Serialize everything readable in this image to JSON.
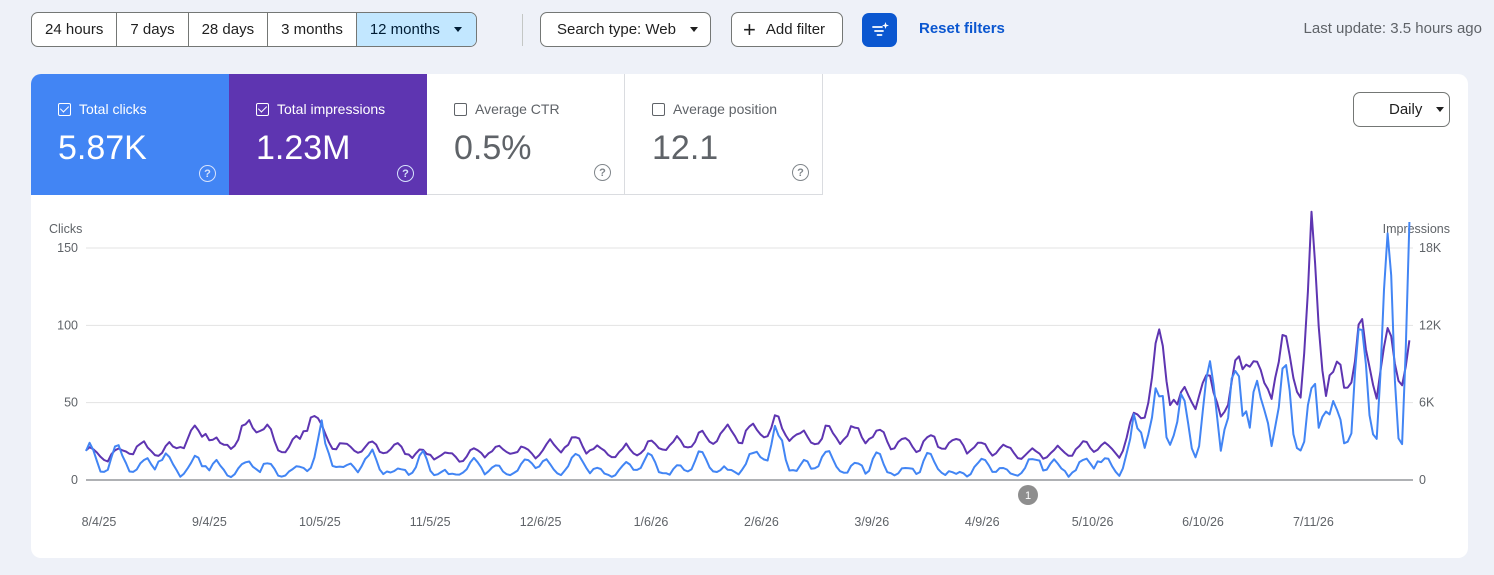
{
  "toolbar": {
    "ranges": [
      "24 hours",
      "7 days",
      "28 days",
      "3 months",
      "12 months"
    ],
    "active_range": "12 months",
    "search_type": "Search type: Web",
    "add_filter": "Add filter",
    "reset_filters": "Reset filters",
    "last_update": "Last update: 3.5 hours ago"
  },
  "metrics": [
    {
      "label": "Total clicks",
      "value": "5.87K",
      "checked": true,
      "color": "#4285f4"
    },
    {
      "label": "Total impressions",
      "value": "1.23M",
      "checked": true,
      "color": "#5e35b1"
    },
    {
      "label": "Average CTR",
      "value": "0.5%",
      "checked": false
    },
    {
      "label": "Average position",
      "value": "12.1",
      "checked": false
    }
  ],
  "granularity": "Daily",
  "annotation_badge": "1",
  "colors": {
    "clicks": "#4285f4",
    "impressions": "#5e35b1",
    "accent": "#0b57d0",
    "active_range_bg": "#c2e7ff"
  },
  "chart_data": {
    "type": "line",
    "left_axis": {
      "label": "Clicks",
      "ticks": [
        "150",
        "100",
        "50",
        "0"
      ],
      "range": [
        0,
        150
      ]
    },
    "right_axis": {
      "label": "Impressions",
      "ticks": [
        "18K",
        "12K",
        "6K",
        "0"
      ],
      "range": [
        0,
        18000
      ]
    },
    "x_ticks": [
      "8/4/25",
      "9/4/25",
      "10/5/25",
      "11/5/25",
      "12/6/25",
      "1/6/26",
      "2/6/26",
      "3/9/26",
      "4/9/26",
      "5/10/26",
      "6/10/26",
      "7/11/26"
    ],
    "x_range": [
      "2025-08-04",
      "2026-08-05"
    ],
    "grid": true,
    "series": [
      {
        "axis": "left",
        "color": "#4285f4",
        "keypoints": [
          [
            "2025-08-04",
            22
          ],
          [
            "2025-08-08",
            8
          ],
          [
            "2025-08-12",
            18
          ],
          [
            "2025-08-18",
            6
          ],
          [
            "2025-08-24",
            16
          ],
          [
            "2025-08-30",
            5
          ],
          [
            "2025-09-06",
            14
          ],
          [
            "2025-09-12",
            4
          ],
          [
            "2025-09-20",
            12
          ],
          [
            "2025-09-27",
            3
          ],
          [
            "2025-10-05",
            10
          ],
          [
            "2025-10-08",
            25
          ],
          [
            "2025-10-14",
            6
          ],
          [
            "2025-10-20",
            15
          ],
          [
            "2025-10-28",
            4
          ],
          [
            "2025-11-05",
            12
          ],
          [
            "2025-11-12",
            3
          ],
          [
            "2025-11-20",
            11
          ],
          [
            "2025-11-28",
            4
          ],
          [
            "2025-12-06",
            13
          ],
          [
            "2025-12-12",
            5
          ],
          [
            "2025-12-18",
            14
          ],
          [
            "2025-12-25",
            3
          ],
          [
            "2026-01-06",
            12
          ],
          [
            "2026-01-12",
            4
          ],
          [
            "2026-01-20",
            15
          ],
          [
            "2026-01-28",
            5
          ],
          [
            "2026-02-06",
            16
          ],
          [
            "2026-02-10",
            25
          ],
          [
            "2026-02-16",
            7
          ],
          [
            "2026-02-24",
            14
          ],
          [
            "2026-03-02",
            5
          ],
          [
            "2026-03-09",
            13
          ],
          [
            "2026-03-16",
            4
          ],
          [
            "2026-03-24",
            12
          ],
          [
            "2026-04-01",
            3
          ],
          [
            "2026-04-09",
            11
          ],
          [
            "2026-04-16",
            4
          ],
          [
            "2026-04-24",
            13
          ],
          [
            "2026-05-02",
            5
          ],
          [
            "2026-05-10",
            15
          ],
          [
            "2026-05-16",
            4
          ],
          [
            "2026-05-20",
            28
          ],
          [
            "2026-05-25",
            38
          ],
          [
            "2026-05-30",
            45
          ],
          [
            "2026-06-05",
            30
          ],
          [
            "2026-06-10",
            50
          ],
          [
            "2026-06-15",
            40
          ],
          [
            "2026-06-20",
            65
          ],
          [
            "2026-06-25",
            35
          ],
          [
            "2026-07-01",
            55
          ],
          [
            "2026-07-06",
            25
          ],
          [
            "2026-07-11",
            60
          ],
          [
            "2026-07-16",
            30
          ],
          [
            "2026-07-22",
            75
          ],
          [
            "2026-07-26",
            40
          ],
          [
            "2026-07-29",
            125
          ],
          [
            "2026-08-02",
            35
          ],
          [
            "2026-08-04",
            122
          ]
        ]
      },
      {
        "axis": "right",
        "color": "#5e35b1",
        "keypoints": [
          [
            "2025-08-04",
            2300
          ],
          [
            "2025-08-10",
            1800
          ],
          [
            "2025-08-18",
            2600
          ],
          [
            "2025-08-26",
            2200
          ],
          [
            "2025-09-01",
            3200
          ],
          [
            "2025-09-06",
            4000
          ],
          [
            "2025-09-10",
            2500
          ],
          [
            "2025-09-16",
            3500
          ],
          [
            "2025-09-20",
            4700
          ],
          [
            "2025-09-26",
            2600
          ],
          [
            "2025-10-02",
            2900
          ],
          [
            "2025-10-05",
            5700
          ],
          [
            "2025-10-08",
            3500
          ],
          [
            "2025-10-16",
            2300
          ],
          [
            "2025-10-25",
            2600
          ],
          [
            "2025-11-05",
            2000
          ],
          [
            "2025-11-15",
            1800
          ],
          [
            "2025-11-25",
            2400
          ],
          [
            "2025-12-06",
            2200
          ],
          [
            "2025-12-12",
            2800
          ],
          [
            "2025-12-18",
            3000
          ],
          [
            "2025-12-25",
            2000
          ],
          [
            "2026-01-06",
            2600
          ],
          [
            "2026-01-16",
            2800
          ],
          [
            "2026-01-26",
            3400
          ],
          [
            "2026-02-06",
            3700
          ],
          [
            "2026-02-10",
            4200
          ],
          [
            "2026-02-18",
            3200
          ],
          [
            "2026-02-26",
            3600
          ],
          [
            "2026-03-09",
            3500
          ],
          [
            "2026-03-18",
            2800
          ],
          [
            "2026-03-28",
            3000
          ],
          [
            "2026-04-09",
            2500
          ],
          [
            "2026-04-20",
            2000
          ],
          [
            "2026-05-02",
            2200
          ],
          [
            "2026-05-10",
            2800
          ],
          [
            "2026-05-16",
            2000
          ],
          [
            "2026-05-20",
            4500
          ],
          [
            "2026-05-24",
            6500
          ],
          [
            "2026-05-27",
            10000
          ],
          [
            "2026-06-01",
            6000
          ],
          [
            "2026-06-08",
            7200
          ],
          [
            "2026-06-15",
            6000
          ],
          [
            "2026-06-20",
            10700
          ],
          [
            "2026-06-25",
            7000
          ],
          [
            "2026-06-30",
            10400
          ],
          [
            "2026-07-05",
            7000
          ],
          [
            "2026-07-08",
            17000
          ],
          [
            "2026-07-12",
            7500
          ],
          [
            "2026-07-18",
            8500
          ],
          [
            "2026-07-22",
            10500
          ],
          [
            "2026-07-26",
            8000
          ],
          [
            "2026-07-30",
            11000
          ],
          [
            "2026-08-02",
            8500
          ],
          [
            "2026-08-04",
            9000
          ]
        ]
      }
    ]
  }
}
